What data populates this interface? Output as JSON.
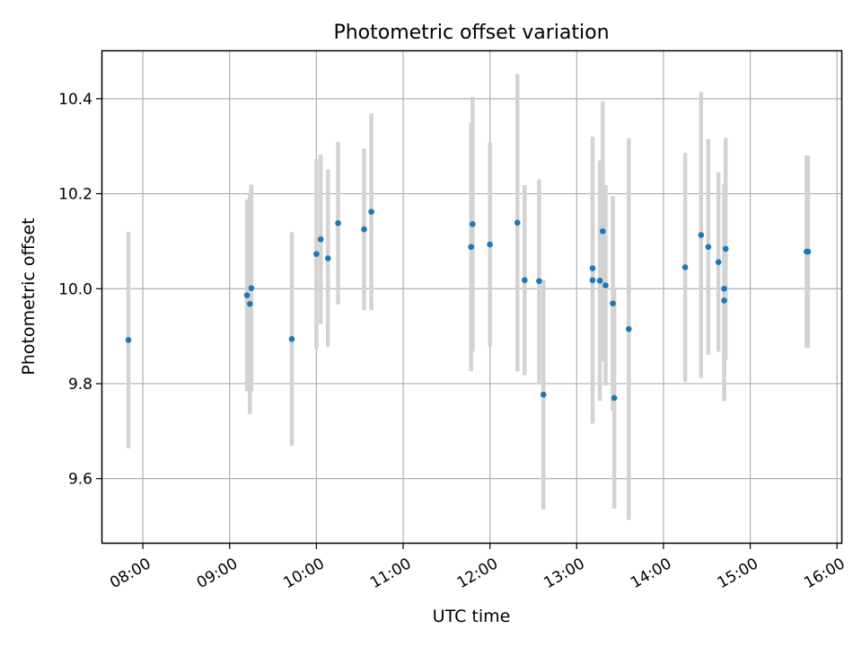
{
  "chart_data": {
    "type": "scatter",
    "title": "Photometric offset variation",
    "xlabel": "UTC time",
    "ylabel": "Photometric offset",
    "xlim": [
      "07:32",
      "16:03"
    ],
    "ylim": [
      9.465,
      10.5
    ],
    "x_ticks": [
      "08:00",
      "09:00",
      "10:00",
      "11:00",
      "12:00",
      "13:00",
      "14:00",
      "15:00",
      "16:00"
    ],
    "y_ticks": [
      9.6,
      9.8,
      10.0,
      10.2,
      10.4
    ],
    "y_tick_labels": [
      "9.6",
      "9.8",
      "10.0",
      "10.2",
      "10.4"
    ],
    "grid": true,
    "colors": {
      "points": "#1f77b4",
      "errorbars": "#d3d3d3",
      "grid": "#b0b0b0"
    },
    "series": [
      {
        "points": [
          {
            "time": "07:50",
            "y": 9.892,
            "err": 0.228
          },
          {
            "time": "09:12",
            "y": 9.986,
            "err": 0.202
          },
          {
            "time": "09:14",
            "y": 9.968,
            "err": 0.232
          },
          {
            "time": "09:15",
            "y": 10.001,
            "err": 0.218
          },
          {
            "time": "09:43",
            "y": 9.894,
            "err": 0.225
          },
          {
            "time": "10:00",
            "y": 10.073,
            "err": 0.2
          },
          {
            "time": "10:03",
            "y": 10.104,
            "err": 0.178
          },
          {
            "time": "10:08",
            "y": 10.064,
            "err": 0.187
          },
          {
            "time": "10:15",
            "y": 10.138,
            "err": 0.171
          },
          {
            "time": "10:33",
            "y": 10.125,
            "err": 0.17
          },
          {
            "time": "10:38",
            "y": 10.162,
            "err": 0.207
          },
          {
            "time": "11:47",
            "y": 10.088,
            "err": 0.262
          },
          {
            "time": "11:48",
            "y": 10.136,
            "err": 0.268
          },
          {
            "time": "12:00",
            "y": 10.093,
            "err": 0.215
          },
          {
            "time": "12:19",
            "y": 10.139,
            "err": 0.313
          },
          {
            "time": "12:24",
            "y": 10.018,
            "err": 0.2
          },
          {
            "time": "12:34",
            "y": 10.016,
            "err": 0.214
          },
          {
            "time": "12:37",
            "y": 9.777,
            "err": 0.242
          },
          {
            "time": "13:11",
            "y": 10.043,
            "err": 0.261
          },
          {
            "time": "13:11",
            "y": 10.018,
            "err": 0.302
          },
          {
            "time": "13:16",
            "y": 10.017,
            "err": 0.253
          },
          {
            "time": "13:18",
            "y": 10.121,
            "err": 0.274
          },
          {
            "time": "13:20",
            "y": 10.007,
            "err": 0.211
          },
          {
            "time": "13:25",
            "y": 9.969,
            "err": 0.226
          },
          {
            "time": "13:26",
            "y": 9.77,
            "err": 0.233
          },
          {
            "time": "13:36",
            "y": 9.915,
            "err": 0.402
          },
          {
            "time": "14:15",
            "y": 10.045,
            "err": 0.241
          },
          {
            "time": "14:26",
            "y": 10.113,
            "err": 0.301
          },
          {
            "time": "14:31",
            "y": 10.088,
            "err": 0.227
          },
          {
            "time": "14:38",
            "y": 10.056,
            "err": 0.189
          },
          {
            "time": "14:42",
            "y": 9.975,
            "err": 0.212
          },
          {
            "time": "14:42",
            "y": 10.0,
            "err": 0.22
          },
          {
            "time": "14:43",
            "y": 10.084,
            "err": 0.234
          },
          {
            "time": "15:39",
            "y": 10.078,
            "err": 0.203
          },
          {
            "time": "15:40",
            "y": 10.078,
            "err": 0.202
          }
        ]
      }
    ]
  }
}
